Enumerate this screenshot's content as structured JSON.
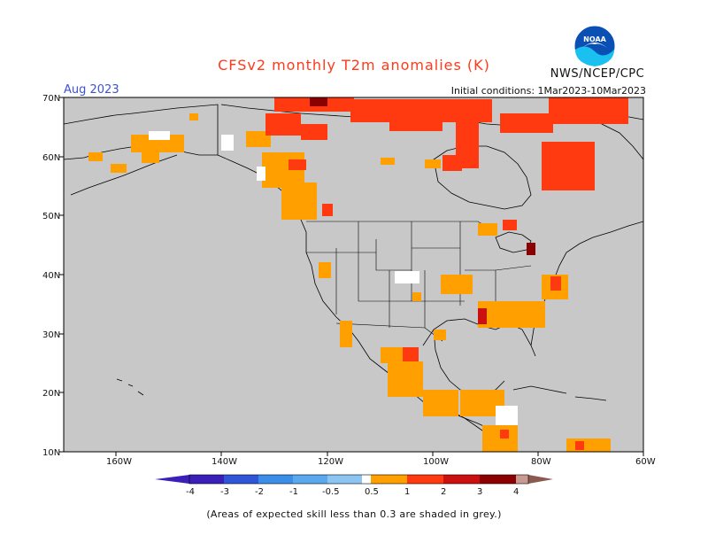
{
  "header": {
    "title": "CFSv2 monthly T2m anomalies (K)",
    "agency": "NWS/NCEP/CPC",
    "month": "Aug 2023",
    "initial_conditions": "Initial conditions: 1Mar2023-10Mar2023",
    "logo_text": "NOAA"
  },
  "map": {
    "background_color": "#c8c8c8",
    "lat_labels": [
      "70N",
      "60N",
      "50N",
      "40N",
      "30N",
      "20N",
      "10N"
    ],
    "lon_labels": [
      "160W",
      "140W",
      "120W",
      "100W",
      "80W",
      "60W"
    ]
  },
  "colorbar": {
    "labels": [
      "-4",
      "-3",
      "-2",
      "-1",
      "-0.5",
      "0.5",
      "1",
      "2",
      "3",
      "4"
    ],
    "colors": [
      "#3a1fb8",
      "#2f55d8",
      "#3b8ee8",
      "#5aa8ee",
      "#8cc4f2",
      "#ffffff",
      "#ffa000",
      "#ff3a10",
      "#cc1010",
      "#8b0000",
      "#c89a90",
      "#8a5a50"
    ]
  },
  "footnote": "(Areas of expected skill less than 0.3 are shaded in grey.)"
}
